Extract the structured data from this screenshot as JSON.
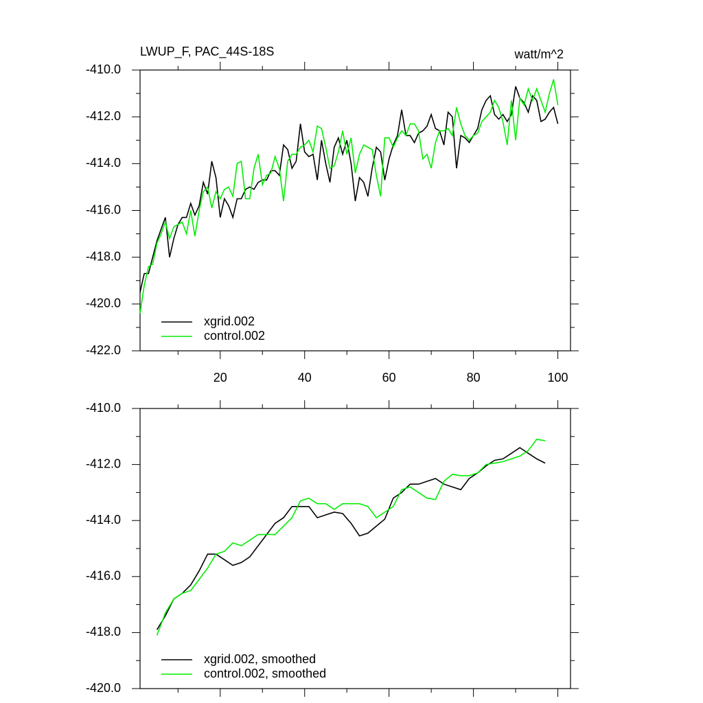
{
  "chart_data": [
    {
      "type": "line",
      "title": "LWUP_F, PAC_44S-18S",
      "right_title": "watt/m^2",
      "x": [
        1,
        2,
        3,
        4,
        5,
        6,
        7,
        8,
        9,
        10,
        11,
        12,
        13,
        14,
        15,
        16,
        17,
        18,
        19,
        20,
        21,
        22,
        23,
        24,
        25,
        26,
        27,
        28,
        29,
        30,
        31,
        32,
        33,
        34,
        35,
        36,
        37,
        38,
        39,
        40,
        41,
        42,
        43,
        44,
        45,
        46,
        47,
        48,
        49,
        50,
        51,
        52,
        53,
        54,
        55,
        56,
        57,
        58,
        59,
        60,
        61,
        62,
        63,
        64,
        65,
        66,
        67,
        68,
        69,
        70,
        71,
        72,
        73,
        74,
        75,
        76,
        77,
        78,
        79,
        80,
        81,
        82,
        83,
        84,
        85,
        86,
        87,
        88,
        89,
        90,
        91,
        92,
        93,
        94,
        95,
        96,
        97,
        98,
        99,
        100
      ],
      "series": [
        {
          "name": "xgrid.002",
          "color": "#000000",
          "values": [
            -419.5,
            -418.7,
            -418.7,
            -418.0,
            -417.3,
            -416.8,
            -416.3,
            -418.0,
            -417.2,
            -416.6,
            -416.3,
            -416.3,
            -415.7,
            -416.2,
            -415.8,
            -414.8,
            -415.3,
            -413.9,
            -414.6,
            -416.3,
            -415.5,
            -415.8,
            -416.3,
            -415.5,
            -415.5,
            -415.1,
            -415.0,
            -415.1,
            -414.8,
            -414.7,
            -414.7,
            -414.3,
            -414.3,
            -414.5,
            -413.2,
            -413.4,
            -414.2,
            -413.9,
            -412.3,
            -413.5,
            -413.7,
            -413.6,
            -414.7,
            -413.0,
            -414.0,
            -414.8,
            -413.3,
            -412.9,
            -413.6,
            -413.0,
            -414.0,
            -415.6,
            -414.6,
            -414.8,
            -415.4,
            -414.2,
            -413.3,
            -413.5,
            -414.7,
            -413.8,
            -413.2,
            -412.8,
            -411.7,
            -412.8,
            -412.8,
            -413.1,
            -412.7,
            -412.6,
            -412.4,
            -411.9,
            -412.5,
            -412.6,
            -413.2,
            -411.8,
            -412.0,
            -414.2,
            -412.8,
            -412.9,
            -413.1,
            -412.8,
            -412.5,
            -411.7,
            -411.3,
            -411.1,
            -411.9,
            -412.1,
            -411.9,
            -412.2,
            -411.9,
            -410.7,
            -411.2,
            -411.4,
            -411.8,
            -411.1,
            -411.3,
            -412.2,
            -412.1,
            -411.8,
            -411.6,
            -412.3
          ]
        },
        {
          "name": "control.002",
          "color": "#00ee00",
          "values": [
            -420.4,
            -419.2,
            -418.4,
            -418.3,
            -417.4,
            -417.0,
            -416.5,
            -417.2,
            -416.7,
            -416.6,
            -416.5,
            -417.0,
            -416.0,
            -417.1,
            -416.0,
            -415.2,
            -415.0,
            -415.9,
            -415.2,
            -415.5,
            -415.1,
            -415.0,
            -415.4,
            -414.0,
            -413.9,
            -415.5,
            -415.5,
            -414.2,
            -413.6,
            -414.9,
            -414.5,
            -414.4,
            -413.7,
            -414.2,
            -415.6,
            -413.9,
            -413.6,
            -413.6,
            -413.3,
            -413.2,
            -413.0,
            -413.5,
            -412.4,
            -412.5,
            -413.3,
            -414.2,
            -414.1,
            -413.5,
            -412.6,
            -413.6,
            -412.9,
            -414.4,
            -413.6,
            -413.2,
            -413.3,
            -413.4,
            -414.5,
            -415.4,
            -412.9,
            -412.9,
            -413.3,
            -412.9,
            -412.6,
            -412.8,
            -412.3,
            -412.3,
            -412.6,
            -413.8,
            -413.6,
            -414.2,
            -413.1,
            -412.6,
            -412.6,
            -412.5,
            -412.8,
            -411.6,
            -412.3,
            -412.8,
            -413.0,
            -412.8,
            -412.7,
            -412.2,
            -412.0,
            -411.8,
            -411.3,
            -411.6,
            -412.2,
            -413.2,
            -411.3,
            -413.0,
            -411.2,
            -411.5,
            -410.8,
            -411.3,
            -410.8,
            -411.3,
            -411.8,
            -411.0,
            -410.4,
            -411.5
          ]
        }
      ],
      "xlim": [
        1,
        103
      ],
      "xticks": [
        20,
        40,
        60,
        80,
        100
      ],
      "xminorticks": [
        10,
        30,
        50,
        70,
        90
      ],
      "show_xtick_labels": true,
      "ylim": [
        -422,
        -410
      ],
      "yticks": [
        {
          "value": -422,
          "label": "-422.0"
        },
        {
          "value": -420,
          "label": "-420.0"
        },
        {
          "value": -418,
          "label": "-418.0"
        },
        {
          "value": -416,
          "label": "-416.0"
        },
        {
          "value": -414,
          "label": "-414.0"
        },
        {
          "value": -412,
          "label": "-412.0"
        },
        {
          "value": -410,
          "label": "-410.0"
        }
      ],
      "yminorticks": [
        -421,
        -419,
        -417,
        -415,
        -413,
        -411
      ],
      "legend": "lower left"
    },
    {
      "type": "line",
      "x": [
        5,
        7,
        9,
        11,
        13,
        15,
        17,
        19,
        21,
        23,
        25,
        27,
        29,
        31,
        33,
        35,
        37,
        39,
        41,
        43,
        45,
        47,
        49,
        51,
        53,
        55,
        57,
        59,
        61,
        63,
        65,
        67,
        69,
        71,
        73,
        75,
        77,
        79,
        81,
        83,
        85,
        87,
        89,
        91,
        93,
        95,
        97
      ],
      "series": [
        {
          "name": "xgrid.002, smoothed",
          "color": "#000000",
          "values": [
            -417.9,
            -417.4,
            -416.8,
            -416.6,
            -416.3,
            -415.8,
            -415.2,
            -415.2,
            -415.4,
            -415.6,
            -415.5,
            -415.3,
            -414.9,
            -414.5,
            -414.1,
            -413.9,
            -413.5,
            -413.5,
            -413.5,
            -413.9,
            -413.8,
            -413.7,
            -413.75,
            -414.1,
            -414.55,
            -414.45,
            -414.2,
            -413.95,
            -413.2,
            -413.0,
            -412.7,
            -412.7,
            -412.6,
            -412.5,
            -412.7,
            -412.8,
            -412.9,
            -412.5,
            -412.3,
            -412.05,
            -411.85,
            -411.8,
            -411.6,
            -411.4,
            -411.6,
            -411.8,
            -411.95
          ]
        },
        {
          "name": "control.002, smoothed",
          "color": "#00ee00",
          "values": [
            -418.1,
            -417.3,
            -416.8,
            -416.6,
            -416.5,
            -416.1,
            -415.7,
            -415.2,
            -415.1,
            -414.8,
            -414.9,
            -414.7,
            -414.5,
            -414.5,
            -414.5,
            -414.2,
            -413.9,
            -413.3,
            -413.2,
            -413.4,
            -413.4,
            -413.6,
            -413.4,
            -413.4,
            -413.4,
            -413.5,
            -413.9,
            -413.7,
            -413.5,
            -412.9,
            -412.8,
            -413.0,
            -413.2,
            -413.25,
            -412.6,
            -412.35,
            -412.4,
            -412.4,
            -412.3,
            -412.0,
            -411.95,
            -411.9,
            -411.8,
            -411.7,
            -411.5,
            -411.1,
            -411.15
          ]
        }
      ],
      "xlim": [
        1,
        103
      ],
      "xticks": [
        20,
        40,
        60,
        80,
        100
      ],
      "xminorticks": [
        10,
        30,
        50,
        70,
        90
      ],
      "show_xtick_labels": false,
      "ylim": [
        -420,
        -410
      ],
      "yticks": [
        {
          "value": -420,
          "label": "-420.0"
        },
        {
          "value": -418,
          "label": "-418.0"
        },
        {
          "value": -416,
          "label": "-416.0"
        },
        {
          "value": -414,
          "label": "-414.0"
        },
        {
          "value": -412,
          "label": "-412.0"
        },
        {
          "value": -410,
          "label": "-410.0"
        }
      ],
      "yminorticks": [
        -419,
        -417,
        -415,
        -413,
        -411
      ],
      "legend": "lower left"
    }
  ]
}
